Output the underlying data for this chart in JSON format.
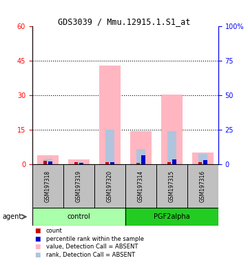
{
  "title": "GDS3039 / Mmu.12915.1.S1_at",
  "samples": [
    "GSM197318",
    "GSM197319",
    "GSM197320",
    "GSM197314",
    "GSM197315",
    "GSM197316"
  ],
  "group_labels": [
    "control",
    "PGF2alpha"
  ],
  "value_bars": [
    4.0,
    2.0,
    43.0,
    14.5,
    30.5,
    5.0
  ],
  "rank_bars": [
    2.5,
    1.0,
    15.0,
    6.5,
    14.5,
    4.5
  ],
  "count_values": [
    1.5,
    0.8,
    1.0,
    0.5,
    0.8,
    1.0
  ],
  "percentile_values": [
    1.2,
    0.5,
    0.9,
    4.0,
    2.2,
    1.8
  ],
  "ylim_left": [
    0,
    60
  ],
  "ylim_right": [
    0,
    100
  ],
  "yticks_left": [
    0,
    15,
    30,
    45,
    60
  ],
  "yticks_right": [
    0,
    25,
    50,
    75,
    100
  ],
  "ytick_labels_right": [
    "0",
    "25",
    "50",
    "75",
    "100%"
  ],
  "color_value_absent": "#FFB6C1",
  "color_rank_absent": "#B0C4DE",
  "color_count": "#CC0000",
  "color_percentile": "#0000CC",
  "legend_items": [
    {
      "label": "count",
      "color": "#CC0000"
    },
    {
      "label": "percentile rank within the sample",
      "color": "#0000CC"
    },
    {
      "label": "value, Detection Call = ABSENT",
      "color": "#FFB6C1"
    },
    {
      "label": "rank, Detection Call = ABSENT",
      "color": "#B0C4DE"
    }
  ]
}
